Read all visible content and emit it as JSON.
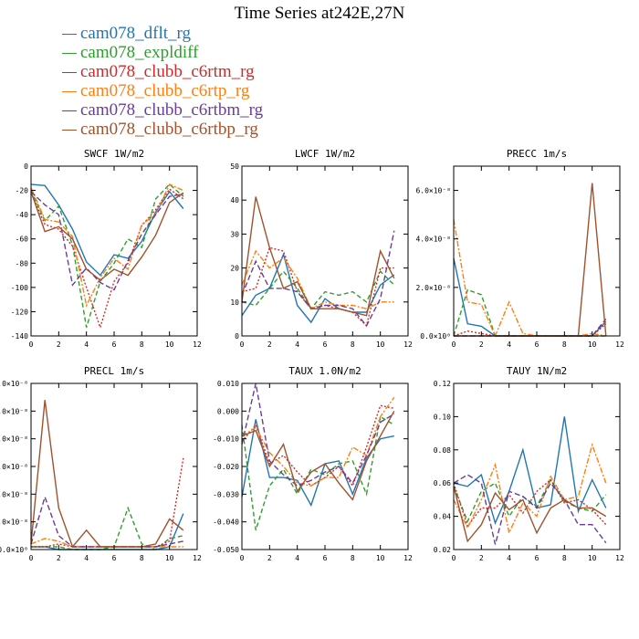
{
  "title": "Time Series at242E,27N",
  "legend": [
    {
      "name": "cam078_dflt_rg",
      "color": "#1f77b4"
    },
    {
      "name": "cam078_expldiff",
      "color": "#2ca02c"
    },
    {
      "name": "cam078_clubb_c6rtm_rg",
      "color": "#d62728"
    },
    {
      "name": "cam078_clubb_c6rtp_rg",
      "color": "#ff7f0e"
    },
    {
      "name": "cam078_clubb_c6rtbm_rg",
      "color": "#6a3d9a"
    },
    {
      "name": "cam078_clubb_c6rtbp_rg",
      "color": "#a0522d"
    }
  ],
  "chart_data": [
    {
      "type": "line",
      "title": "SWCF   1W/m2",
      "xlim": [
        0,
        12
      ],
      "ylim": [
        -140,
        0
      ],
      "xticks": [
        "0",
        "2",
        "4",
        "6",
        "8",
        "10",
        "12"
      ],
      "yticks": [
        "-140",
        "-120",
        "-100",
        "-80",
        "-60",
        "-40",
        "-20",
        "0"
      ],
      "x": [
        0,
        1,
        2,
        3,
        4,
        5,
        6,
        7,
        8,
        9,
        10,
        11
      ],
      "series": [
        {
          "name": "cam078_dflt_rg",
          "values": [
            -15,
            -16,
            -32,
            -52,
            -79,
            -90,
            -73,
            -76,
            -62,
            -38,
            -21,
            -35
          ]
        },
        {
          "name": "cam078_expldiff",
          "values": [
            -20,
            -45,
            -33,
            -65,
            -133,
            -95,
            -80,
            -60,
            -67,
            -27,
            -15,
            -25
          ]
        },
        {
          "name": "cam078_clubb_c6rtm_rg",
          "values": [
            -22,
            -48,
            -52,
            -66,
            -100,
            -133,
            -95,
            -80,
            -49,
            -36,
            -19,
            -27
          ]
        },
        {
          "name": "cam078_clubb_c6rtp_rg",
          "values": [
            -18,
            -44,
            -46,
            -58,
            -115,
            -92,
            -76,
            -85,
            -48,
            -40,
            -15,
            -20
          ]
        },
        {
          "name": "cam078_clubb_c6rtbm_rg",
          "values": [
            -21,
            -32,
            -40,
            -98,
            -84,
            -96,
            -102,
            -78,
            -56,
            -40,
            -25,
            -23
          ]
        },
        {
          "name": "cam078_clubb_c6rtbp_rg",
          "values": [
            -21,
            -54,
            -50,
            -60,
            -85,
            -94,
            -85,
            -90,
            -75,
            -57,
            -30,
            -22
          ]
        }
      ]
    },
    {
      "type": "line",
      "title": "LWCF   1W/m2",
      "xlim": [
        0,
        12
      ],
      "ylim": [
        0,
        50
      ],
      "xticks": [
        "0",
        "2",
        "4",
        "6",
        "8",
        "10",
        "12"
      ],
      "yticks": [
        "0",
        "10",
        "20",
        "30",
        "40",
        "50"
      ],
      "x": [
        0,
        1,
        2,
        3,
        4,
        5,
        6,
        7,
        8,
        9,
        10,
        11
      ],
      "series": [
        {
          "name": "cam078_dflt_rg",
          "values": [
            6,
            12,
            14,
            24,
            9,
            4,
            11,
            8,
            7,
            7,
            15,
            18
          ]
        },
        {
          "name": "cam078_expldiff",
          "values": [
            10,
            9,
            14,
            19,
            14,
            8,
            13,
            12,
            13,
            10,
            19,
            15
          ]
        },
        {
          "name": "cam078_clubb_c6rtm_rg",
          "values": [
            13,
            14,
            26,
            25,
            13,
            8,
            9,
            8,
            7,
            3,
            20,
            20
          ]
        },
        {
          "name": "cam078_clubb_c6rtp_rg",
          "values": [
            15,
            25,
            20,
            23,
            17,
            8,
            10,
            9,
            9,
            8,
            10,
            10
          ]
        },
        {
          "name": "cam078_clubb_c6rtbm_rg",
          "values": [
            12,
            22,
            14,
            14,
            13,
            8,
            9,
            9,
            8,
            3,
            11,
            31
          ]
        },
        {
          "name": "cam078_clubb_c6rtbp_rg",
          "values": [
            10,
            41,
            26,
            14,
            16,
            8,
            8,
            8,
            7,
            6,
            25,
            17
          ]
        }
      ]
    },
    {
      "type": "line",
      "title": "PRECC   1m/s",
      "xlim": [
        0,
        12
      ],
      "ylim": [
        0,
        7e-08
      ],
      "xticks": [
        "0",
        "2",
        "4",
        "6",
        "8",
        "10",
        "12"
      ],
      "yticks": [
        "0.0×10⁰",
        "2.0×10⁻⁸",
        "4.0×10⁻⁸",
        "6.0×10⁻⁸"
      ],
      "ytick_values": [
        0,
        2e-08,
        4e-08,
        6e-08
      ],
      "x": [
        0,
        1,
        2,
        3,
        4,
        5,
        6,
        7,
        8,
        9,
        10,
        11
      ],
      "series": [
        {
          "name": "cam078_dflt_rg",
          "values": [
            3.2e-08,
            5e-09,
            4e-09,
            0,
            0,
            0,
            0,
            0,
            0,
            0,
            0,
            6e-09
          ]
        },
        {
          "name": "cam078_expldiff",
          "values": [
            0,
            1.9e-08,
            1.7e-08,
            0,
            0,
            0,
            0,
            0,
            0,
            0,
            0,
            0
          ]
        },
        {
          "name": "cam078_clubb_c6rtm_rg",
          "values": [
            0,
            2e-09,
            1e-09,
            0,
            0,
            0,
            0,
            0,
            0,
            0,
            0,
            5e-09
          ]
        },
        {
          "name": "cam078_clubb_c6rtp_rg",
          "values": [
            4.8e-08,
            1.4e-08,
            1.3e-08,
            0,
            1.4e-08,
            1e-09,
            0,
            0,
            0,
            0,
            1e-09,
            0
          ]
        },
        {
          "name": "cam078_clubb_c6rtbm_rg",
          "values": [
            0,
            0,
            0,
            0,
            0,
            0,
            0,
            0,
            0,
            0,
            0,
            7e-09
          ]
        },
        {
          "name": "cam078_clubb_c6rtbp_rg",
          "values": [
            0,
            0,
            0,
            0,
            0,
            0,
            0,
            0,
            0,
            0,
            6.3e-08,
            0
          ]
        }
      ]
    },
    {
      "type": "line",
      "title": "PRECL   1m/s",
      "xlim": [
        0,
        12
      ],
      "ylim": [
        0,
        6e-08
      ],
      "xticks": [
        "0",
        "2",
        "4",
        "6",
        "8",
        "10",
        "12"
      ],
      "yticks": [
        "0.0×10⁰",
        "1.0×10⁻⁸",
        "2.0×10⁻⁸",
        "3.0×10⁻⁸",
        "4.0×10⁻⁸",
        "5.0×10⁻⁸",
        "6.0×10⁻⁸"
      ],
      "ytick_values": [
        0,
        1e-08,
        2e-08,
        3e-08,
        4e-08,
        5e-08,
        6e-08
      ],
      "x": [
        0,
        1,
        2,
        3,
        4,
        5,
        6,
        7,
        8,
        9,
        10,
        11
      ],
      "series": [
        {
          "name": "cam078_dflt_rg",
          "values": [
            1e-09,
            1e-09,
            0,
            0,
            0,
            0,
            0,
            0,
            0,
            0,
            1e-09,
            1.3e-08
          ]
        },
        {
          "name": "cam078_expldiff",
          "values": [
            1e-09,
            1e-09,
            1e-09,
            0,
            0,
            0,
            1e-09,
            1.5e-08,
            2e-09,
            0,
            4e-09,
            5e-09
          ]
        },
        {
          "name": "cam078_clubb_c6rtm_rg",
          "values": [
            1e-09,
            1e-09,
            2e-09,
            1e-09,
            1e-09,
            1e-09,
            1e-09,
            1e-09,
            1e-09,
            1e-09,
            3e-09,
            3.3e-08
          ]
        },
        {
          "name": "cam078_clubb_c6rtp_rg",
          "values": [
            2e-09,
            4e-09,
            3e-09,
            1e-09,
            1e-09,
            1e-09,
            1e-09,
            1e-09,
            1e-09,
            1e-09,
            1e-09,
            1e-09
          ]
        },
        {
          "name": "cam078_clubb_c6rtbm_rg",
          "values": [
            2e-09,
            1.9e-08,
            5e-09,
            1e-09,
            1e-09,
            1e-09,
            1e-09,
            1e-09,
            1e-09,
            1e-09,
            2e-09,
            3e-09
          ]
        },
        {
          "name": "cam078_clubb_c6rtbp_rg",
          "values": [
            2e-09,
            5.4e-08,
            1.5e-08,
            1e-09,
            7e-09,
            1e-09,
            1e-09,
            1e-09,
            1e-09,
            2e-09,
            1.1e-08,
            7e-09
          ]
        }
      ]
    },
    {
      "type": "line",
      "title": "TAUX   1.0N/m2",
      "xlim": [
        0,
        12
      ],
      "ylim": [
        -0.05,
        0.01
      ],
      "xticks": [
        "0",
        "2",
        "4",
        "6",
        "8",
        "10",
        "12"
      ],
      "yticks": [
        "-0.050",
        "-0.040",
        "-0.030",
        "-0.020",
        "-0.010",
        "0.000",
        "0.010"
      ],
      "ytick_values": [
        -0.05,
        -0.04,
        -0.03,
        -0.02,
        -0.01,
        0,
        0.01
      ],
      "x": [
        0,
        1,
        2,
        3,
        4,
        5,
        6,
        7,
        8,
        9,
        10,
        11
      ],
      "series": [
        {
          "name": "cam078_dflt_rg",
          "values": [
            -0.031,
            -0.003,
            -0.024,
            -0.024,
            -0.025,
            -0.034,
            -0.019,
            -0.018,
            -0.03,
            -0.017,
            -0.01,
            -0.009
          ]
        },
        {
          "name": "cam078_expldiff",
          "values": [
            -0.005,
            -0.043,
            -0.027,
            -0.021,
            -0.03,
            -0.021,
            -0.023,
            -0.019,
            -0.018,
            -0.03,
            -0.002,
            -0.005
          ]
        },
        {
          "name": "cam078_clubb_c6rtm_rg",
          "values": [
            -0.011,
            -0.005,
            -0.019,
            -0.016,
            -0.022,
            -0.027,
            -0.024,
            -0.02,
            -0.027,
            -0.013,
            0.002,
            0.001
          ]
        },
        {
          "name": "cam078_clubb_c6rtp_rg",
          "values": [
            -0.009,
            -0.006,
            -0.015,
            -0.02,
            -0.026,
            -0.027,
            -0.024,
            -0.024,
            -0.013,
            -0.016,
            -0.002,
            0.005
          ]
        },
        {
          "name": "cam078_clubb_c6rtbm_rg",
          "values": [
            -0.012,
            0.01,
            -0.018,
            -0.023,
            -0.027,
            -0.025,
            -0.022,
            -0.02,
            -0.026,
            -0.016,
            -0.004,
            -0.001
          ]
        },
        {
          "name": "cam078_clubb_c6rtbp_rg",
          "values": [
            -0.009,
            -0.007,
            -0.02,
            -0.012,
            -0.029,
            -0.022,
            -0.019,
            -0.026,
            -0.032,
            -0.018,
            -0.009,
            0
          ]
        }
      ]
    },
    {
      "type": "line",
      "title": "TAUY   1N/m2",
      "xlim": [
        0,
        12
      ],
      "ylim": [
        0.02,
        0.12
      ],
      "xticks": [
        "0",
        "2",
        "4",
        "6",
        "8",
        "10",
        "12"
      ],
      "yticks": [
        "0.02",
        "0.04",
        "0.06",
        "0.08",
        "0.10",
        "0.12"
      ],
      "ytick_values": [
        0.02,
        0.04,
        0.06,
        0.08,
        0.1,
        0.12
      ],
      "x": [
        0,
        1,
        2,
        3,
        4,
        5,
        6,
        7,
        8,
        9,
        10,
        11
      ],
      "series": [
        {
          "name": "cam078_dflt_rg",
          "values": [
            0.06,
            0.058,
            0.065,
            0.036,
            0.055,
            0.08,
            0.045,
            0.047,
            0.1,
            0.043,
            0.062,
            0.045
          ]
        },
        {
          "name": "cam078_expldiff",
          "values": [
            0.058,
            0.037,
            0.055,
            0.06,
            0.04,
            0.052,
            0.046,
            0.062,
            0.049,
            0.045,
            0.043,
            0.053
          ]
        },
        {
          "name": "cam078_clubb_c6rtm_rg",
          "values": [
            0.06,
            0.034,
            0.045,
            0.045,
            0.053,
            0.042,
            0.055,
            0.062,
            0.048,
            0.05,
            0.044,
            0.035
          ]
        },
        {
          "name": "cam078_clubb_c6rtp_rg",
          "values": [
            0.05,
            0.033,
            0.05,
            0.071,
            0.03,
            0.048,
            0.04,
            0.064,
            0.05,
            0.052,
            0.083,
            0.06
          ]
        },
        {
          "name": "cam078_clubb_c6rtbm_rg",
          "values": [
            0.06,
            0.065,
            0.06,
            0.023,
            0.055,
            0.052,
            0.045,
            0.06,
            0.05,
            0.035,
            0.035,
            0.024
          ]
        },
        {
          "name": "cam078_clubb_c6rtbp_rg",
          "values": [
            0.058,
            0.025,
            0.035,
            0.054,
            0.044,
            0.05,
            0.03,
            0.045,
            0.05,
            0.045,
            0.045,
            0.04
          ]
        }
      ]
    }
  ]
}
